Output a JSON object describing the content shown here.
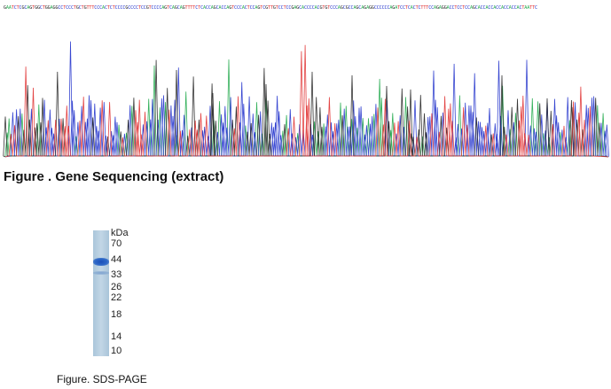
{
  "sequence": "GAATCTCGCAGTGGCTGGAGGCCTCCCTGCTGTTTCCCACTCTCCCCGCCCCTCCGTCCCCAGTCAGCAGTTTTCTCACCAGCACCAGTCCCACTCCAGTCGTTGTCCTCCGAGCACCCCACGTGTCCCAGCGCCAGCAGAGGCCCCCCAGATCCTCACTCTTTCCAGAGGACCTCCTCCAGCACCACCACCACCACCACTAATTC",
  "base_colors": {
    "A": "#1fa84a",
    "C": "#2233cc",
    "G": "#222222",
    "T": "#e03030"
  },
  "figure1": {
    "caption": "Figure . Gene Sequencing (extract)"
  },
  "gel": {
    "unit_label": "kDa",
    "markers": [
      "70",
      "44",
      "33",
      "26",
      "22",
      "18",
      "14",
      "10"
    ]
  },
  "figure2": {
    "caption": "Figure. SDS-PAGE"
  }
}
